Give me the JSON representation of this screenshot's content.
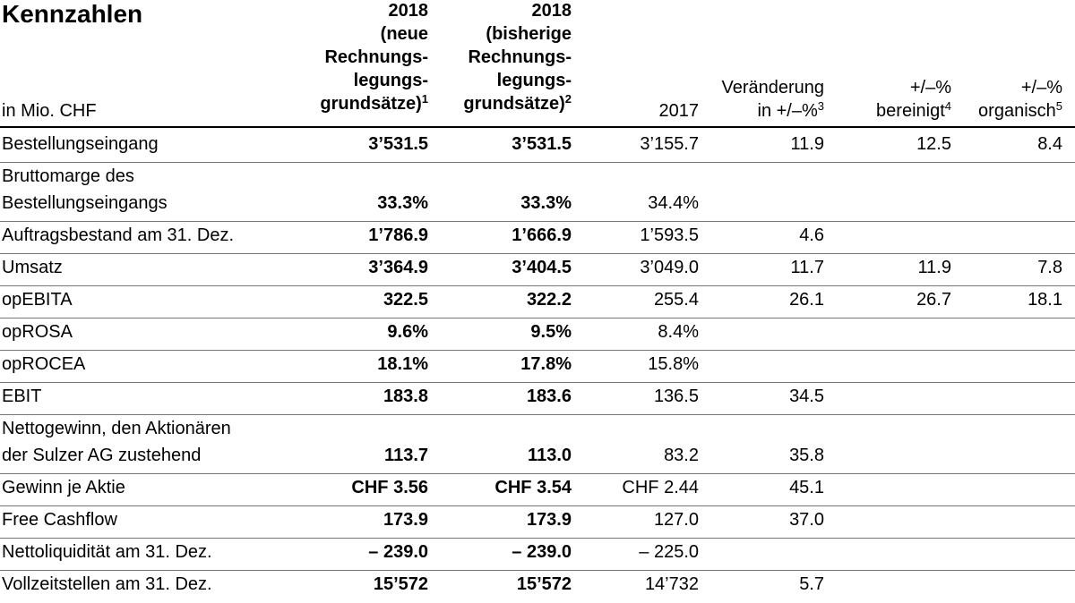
{
  "title": "Kennzahlen",
  "header": {
    "unit": "in Mio. CHF",
    "col_2018_new": {
      "year": "2018",
      "lines": [
        "(neue",
        "Rechnungs-",
        "legungs-",
        "grundsätze)"
      ],
      "footnote": "1"
    },
    "col_2018_old": {
      "year": "2018",
      "lines": [
        "(bisherige",
        "Rechnungs-",
        "legungs-",
        "grundsätze)"
      ],
      "footnote": "2"
    },
    "col_2017": "2017",
    "col_change": {
      "lines": [
        "Veränderung",
        "in +/–%"
      ],
      "footnote": "3"
    },
    "col_adjusted": {
      "lines": [
        "+/–%",
        "bereinigt"
      ],
      "footnote": "4"
    },
    "col_organic": {
      "lines": [
        "+/–%",
        "organisch"
      ],
      "footnote": "5"
    }
  },
  "rows": [
    {
      "label": [
        "Bestellungseingang"
      ],
      "v2018n": "3’531.5",
      "v2018b": "3’531.5",
      "v2017": "3’155.7",
      "change": "11.9",
      "adjusted": "12.5",
      "organic": "8.4"
    },
    {
      "label": [
        "Bruttomarge des",
        "Bestellungseingangs"
      ],
      "v2018n": "33.3%",
      "v2018b": "33.3%",
      "v2017": "34.4%",
      "change": "",
      "adjusted": "",
      "organic": ""
    },
    {
      "label": [
        "Auftragsbestand am 31. Dez."
      ],
      "v2018n": "1’786.9",
      "v2018b": "1’666.9",
      "v2017": "1’593.5",
      "change": "4.6",
      "adjusted": "",
      "organic": ""
    },
    {
      "label": [
        "Umsatz"
      ],
      "v2018n": "3’364.9",
      "v2018b": "3’404.5",
      "v2017": "3’049.0",
      "change": "11.7",
      "adjusted": "11.9",
      "organic": "7.8"
    },
    {
      "label": [
        "opEBITA"
      ],
      "v2018n": "322.5",
      "v2018b": "322.2",
      "v2017": "255.4",
      "change": "26.1",
      "adjusted": "26.7",
      "organic": "18.1"
    },
    {
      "label": [
        "opROSA"
      ],
      "v2018n": "9.6%",
      "v2018b": "9.5%",
      "v2017": "8.4%",
      "change": "",
      "adjusted": "",
      "organic": ""
    },
    {
      "label": [
        "opROCEA"
      ],
      "v2018n": "18.1%",
      "v2018b": "17.8%",
      "v2017": "15.8%",
      "change": "",
      "adjusted": "",
      "organic": ""
    },
    {
      "label": [
        "EBIT"
      ],
      "v2018n": "183.8",
      "v2018b": "183.6",
      "v2017": "136.5",
      "change": "34.5",
      "adjusted": "",
      "organic": ""
    },
    {
      "label": [
        "Nettogewinn, den Aktionären",
        "der Sulzer AG zustehend"
      ],
      "v2018n": "113.7",
      "v2018b": "113.0",
      "v2017": "83.2",
      "change": "35.8",
      "adjusted": "",
      "organic": ""
    },
    {
      "label": [
        "Gewinn je Aktie"
      ],
      "v2018n": "CHF 3.56",
      "v2018b": "CHF 3.54",
      "v2017": "CHF 2.44",
      "change": "45.1",
      "adjusted": "",
      "organic": ""
    },
    {
      "label": [
        "Free Cashflow"
      ],
      "v2018n": "173.9",
      "v2018b": "173.9",
      "v2017": "127.0",
      "change": "37.0",
      "adjusted": "",
      "organic": ""
    },
    {
      "label": [
        "Nettoliquidität am 31. Dez."
      ],
      "v2018n": "– 239.0",
      "v2018b": "– 239.0",
      "v2017": "– 225.0",
      "change": "",
      "adjusted": "",
      "organic": ""
    },
    {
      "label": [
        "Vollzeitstellen am 31. Dez."
      ],
      "v2018n": "15’572",
      "v2018b": "15’572",
      "v2017": "14’732",
      "change": "5.7",
      "adjusted": "",
      "organic": ""
    }
  ]
}
